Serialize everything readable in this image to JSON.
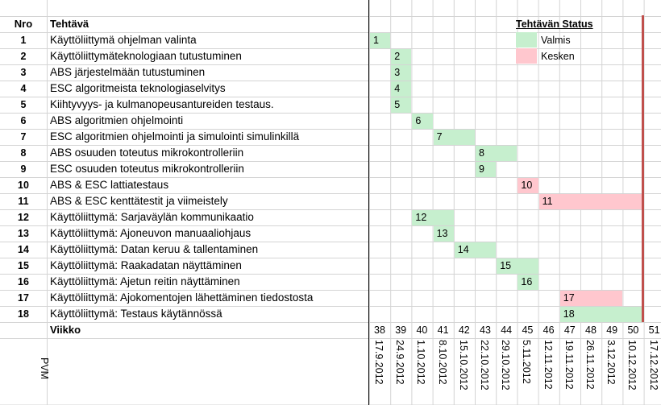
{
  "headers": {
    "nro": "Nro",
    "task": "Tehtävä",
    "week": "Viikko",
    "date": "PVM"
  },
  "legend": {
    "title": "Tehtävän Status",
    "items": [
      {
        "status": "done",
        "label": "Valmis"
      },
      {
        "status": "open",
        "label": "Kesken"
      }
    ]
  },
  "colors": {
    "done": "#c6efce",
    "open": "#ffc7ce",
    "deadline": "#c0504d",
    "grid": "#d4d4d4"
  },
  "chart_data": {
    "type": "gantt",
    "weeks": [
      38,
      39,
      40,
      41,
      42,
      43,
      44,
      45,
      46,
      47,
      48,
      49,
      50,
      51
    ],
    "dates": [
      "17.9.2012",
      "24.9.2012",
      "1.10.2012",
      "8.10.2012",
      "15.10.2012",
      "22.10.2012",
      "29.10.2012",
      "5.11.2012",
      "12.11.2012",
      "19.11.2012",
      "26.11.2012",
      "3.12.2012",
      "10.12.2012",
      "17.12.2012"
    ],
    "deadline_week": 51,
    "tasks": [
      {
        "nro": "1",
        "name": "Käyttöliittymä ohjelman valinta",
        "start": 38,
        "end": 38,
        "status": "done"
      },
      {
        "nro": "2",
        "name": "Käyttöliittymäteknologiaan tutustuminen",
        "start": 39,
        "end": 39,
        "status": "done"
      },
      {
        "nro": "3",
        "name": "ABS järjestelmään tutustuminen",
        "start": 39,
        "end": 39,
        "status": "done"
      },
      {
        "nro": "4",
        "name": "ESC algoritmeista teknologiaselvitys",
        "start": 39,
        "end": 39,
        "status": "done"
      },
      {
        "nro": "5",
        "name": "Kiihtyvyys- ja kulmanopeusantureiden testaus.",
        "start": 39,
        "end": 39,
        "status": "done"
      },
      {
        "nro": "6",
        "name": "ABS algoritmien ohjelmointi",
        "start": 40,
        "end": 40,
        "status": "done"
      },
      {
        "nro": "7",
        "name": "ESC algoritmien ohjelmointi ja simulointi simulinkillä",
        "start": 41,
        "end": 42,
        "status": "done"
      },
      {
        "nro": "8",
        "name": "ABS osuuden toteutus mikrokontrolleriin",
        "start": 43,
        "end": 44,
        "status": "done"
      },
      {
        "nro": "9",
        "name": "ESC osuuden toteutus mikrokontrolleriin",
        "start": 43,
        "end": 43,
        "status": "done"
      },
      {
        "nro": "10",
        "name": "ABS & ESC lattiatestaus",
        "start": 45,
        "end": 45,
        "status": "open"
      },
      {
        "nro": "11",
        "name": "ABS & ESC kenttätestit ja viimeistely",
        "start": 46,
        "end": 50,
        "status": "open"
      },
      {
        "nro": "12",
        "name": "Käyttöliittymä: Sarjaväylän kommunikaatio",
        "start": 40,
        "end": 41,
        "status": "done"
      },
      {
        "nro": "13",
        "name": "Käyttöliittymä: Ajoneuvon manuaaliohjaus",
        "start": 41,
        "end": 41,
        "status": "done"
      },
      {
        "nro": "14",
        "name": "Käyttöliittymä: Datan keruu & tallentaminen",
        "start": 42,
        "end": 43,
        "status": "done"
      },
      {
        "nro": "15",
        "name": "Käyttöliittymä: Raakadatan näyttäminen",
        "start": 44,
        "end": 45,
        "status": "done"
      },
      {
        "nro": "16",
        "name": "Käyttöliittymä: Ajetun reitin näyttäminen",
        "start": 45,
        "end": 45,
        "status": "done"
      },
      {
        "nro": "17",
        "name": "Käyttöliittymä: Ajokomentojen lähettäminen tiedostosta",
        "start": 47,
        "end": 49,
        "status": "open"
      },
      {
        "nro": "18",
        "name": "Käyttöliittymä: Testaus käytännössä",
        "start": 47,
        "end": 50,
        "status": "done"
      }
    ]
  }
}
